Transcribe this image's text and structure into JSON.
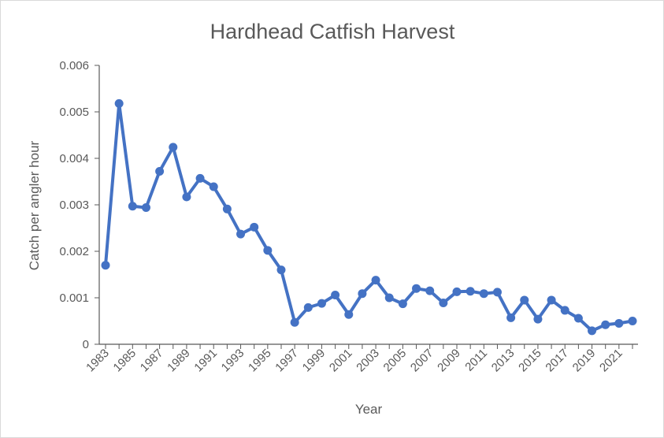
{
  "chart_data": {
    "type": "line",
    "title": "Hardhead Catfish Harvest",
    "xlabel": "Year",
    "ylabel": "Catch per angler hour",
    "ylim": [
      0,
      0.006
    ],
    "yticks": [
      "0",
      "0.001",
      "0.002",
      "0.003",
      "0.004",
      "0.005",
      "0.006"
    ],
    "xtick_labels": [
      "1983",
      "1985",
      "1987",
      "1989",
      "1991",
      "1993",
      "1995",
      "1997",
      "1999",
      "2001",
      "2003",
      "2005",
      "2007",
      "2009",
      "2011",
      "2013",
      "2015",
      "2017",
      "2019",
      "2021"
    ],
    "x": [
      1983,
      1984,
      1985,
      1986,
      1987,
      1988,
      1989,
      1990,
      1991,
      1992,
      1993,
      1994,
      1995,
      1996,
      1997,
      1998,
      1999,
      2000,
      2001,
      2002,
      2003,
      2004,
      2005,
      2006,
      2007,
      2008,
      2009,
      2010,
      2011,
      2012,
      2013,
      2014,
      2015,
      2016,
      2017,
      2018,
      2019,
      2020,
      2021,
      2022
    ],
    "series": [
      {
        "values": [
          0.0017,
          0.00518,
          0.00297,
          0.00294,
          0.00372,
          0.00424,
          0.00317,
          0.00357,
          0.00339,
          0.00291,
          0.00237,
          0.00252,
          0.00202,
          0.0016,
          0.00047,
          0.00079,
          0.00088,
          0.00106,
          0.00064,
          0.00109,
          0.00138,
          0.001,
          0.00087,
          0.0012,
          0.00115,
          0.00089,
          0.00113,
          0.00114,
          0.00109,
          0.00112,
          0.00057,
          0.00095,
          0.00054,
          0.00095,
          0.00073,
          0.00056,
          0.00029,
          0.00042,
          0.00045,
          0.0005
        ]
      }
    ],
    "grid": false,
    "legend": "none",
    "line_color": "#4472c4",
    "axis_color": "#595959"
  }
}
